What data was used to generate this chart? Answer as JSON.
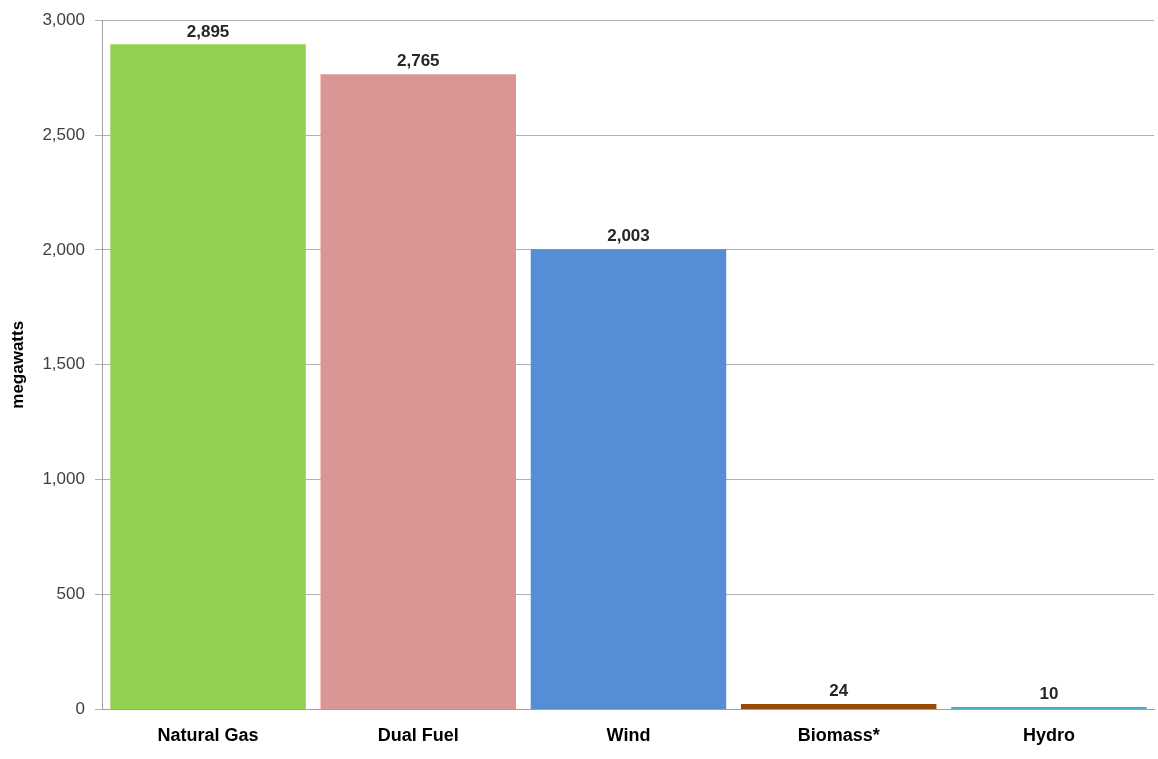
{
  "chart_data": {
    "type": "bar",
    "ylabel": "megawatts",
    "categories": [
      "Natural Gas",
      "Dual Fuel",
      "Wind",
      "Biomass*",
      "Hydro"
    ],
    "values": [
      2895,
      2765,
      2003,
      24,
      10
    ],
    "colors": [
      "#92d050",
      "#d99694",
      "#558ed5",
      "#984807",
      "#4bacc6"
    ],
    "ylim": [
      0,
      3000
    ],
    "yticks": [
      {
        "value": 0,
        "label": "0"
      },
      {
        "value": 500,
        "label": "500"
      },
      {
        "value": 1000,
        "label": "1,000"
      },
      {
        "value": 1500,
        "label": "1,500"
      },
      {
        "value": 2000,
        "label": "2,000"
      },
      {
        "value": 2500,
        "label": "2,500"
      },
      {
        "value": 3000,
        "label": "3,000"
      }
    ],
    "value_labels": [
      "2,895",
      "2,765",
      "2,003",
      "24",
      "10"
    ],
    "grid": "y",
    "legend": false
  }
}
